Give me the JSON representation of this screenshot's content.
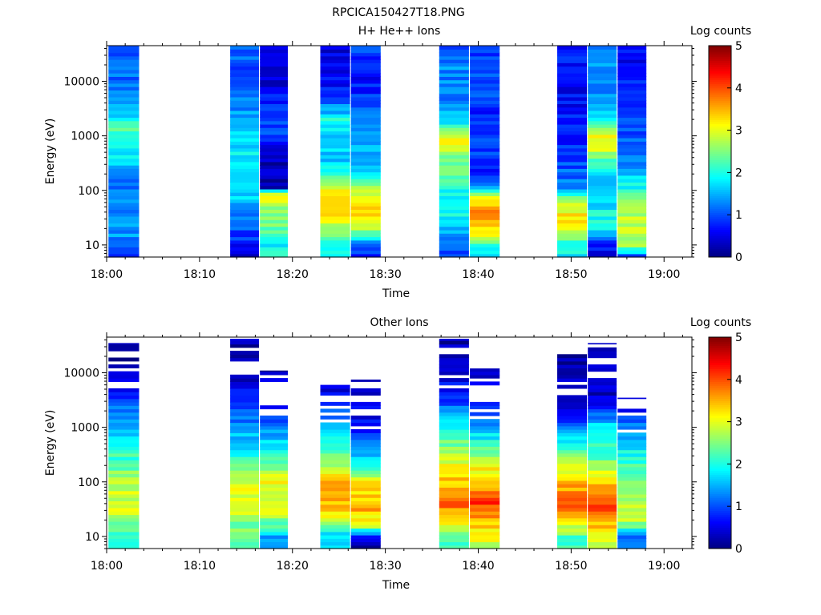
{
  "figure_title": "RPCICA150427T18.PNG",
  "chart_data": [
    {
      "type": "heatmap",
      "title": "H+ He++ Ions",
      "xlabel": "Time",
      "ylabel": "Energy (eV)",
      "x_ticks": [
        "18:00",
        "18:10",
        "18:20",
        "18:30",
        "18:40",
        "18:50",
        "19:00"
      ],
      "x_range": [
        "18:00",
        "19:03"
      ],
      "y_scale": "log",
      "y_range": [
        6,
        45000
      ],
      "y_ticks": [
        10,
        100,
        1000,
        10000
      ],
      "y_ticklabels": [
        "10",
        "100",
        "1000",
        "10000"
      ],
      "colorbar": {
        "label": "Log counts",
        "range": [
          0,
          5
        ],
        "ticks": [
          "0",
          "1",
          "2",
          "3",
          "4",
          "5"
        ],
        "colormap": "jet"
      },
      "intervals": [
        {
          "start": "18:00.2",
          "end": "18:03.5",
          "profile": [
            [
              6,
              1.0
            ],
            [
              10,
              1.3
            ],
            [
              20,
              1.35
            ],
            [
              60,
              1.2
            ],
            [
              150,
              1.15
            ],
            [
              400,
              1.7
            ],
            [
              1000,
              2.0
            ],
            [
              1500,
              2.4
            ],
            [
              2000,
              1.8
            ],
            [
              5000,
              1.35
            ],
            [
              15000,
              1.15
            ],
            [
              45000,
              1.1
            ]
          ]
        },
        {
          "start": "18:13.3",
          "end": "18:16.4",
          "profile": [
            [
              6,
              0.4
            ],
            [
              10,
              0.7
            ],
            [
              15,
              0.9
            ],
            [
              40,
              1.4
            ],
            [
              100,
              1.8
            ],
            [
              300,
              1.9
            ],
            [
              1000,
              1.6
            ],
            [
              3000,
              1.3
            ],
            [
              15000,
              1.0
            ],
            [
              45000,
              1.1
            ]
          ]
        },
        {
          "start": "18:16.5",
          "end": "18:19.5",
          "profile": [
            [
              6,
              2.0
            ],
            [
              10,
              1.9
            ],
            [
              20,
              2.3
            ],
            [
              50,
              2.7
            ],
            [
              90,
              3.0
            ],
            [
              110,
              0.3
            ],
            [
              400,
              0.3
            ],
            [
              1000,
              1.0
            ],
            [
              3000,
              0.9
            ],
            [
              10000,
              0.4
            ],
            [
              45000,
              0.4
            ]
          ]
        },
        {
          "start": "18:23.0",
          "end": "18:26.2",
          "profile": [
            [
              6,
              1.8
            ],
            [
              10,
              1.9
            ],
            [
              15,
              2.3
            ],
            [
              25,
              3.0
            ],
            [
              50,
              3.3
            ],
            [
              100,
              3.0
            ],
            [
              300,
              1.7
            ],
            [
              1000,
              1.6
            ],
            [
              2000,
              2.0
            ],
            [
              3000,
              1.4
            ],
            [
              10000,
              0.6
            ],
            [
              45000,
              0.4
            ]
          ]
        },
        {
          "start": "18:26.3",
          "end": "18:29.5",
          "profile": [
            [
              6,
              0.8
            ],
            [
              10,
              0.9
            ],
            [
              15,
              2.0
            ],
            [
              25,
              3.2
            ],
            [
              50,
              3.3
            ],
            [
              100,
              2.8
            ],
            [
              200,
              1.7
            ],
            [
              1000,
              1.3
            ],
            [
              5000,
              0.9
            ],
            [
              10000,
              0.7
            ],
            [
              45000,
              1.0
            ]
          ]
        },
        {
          "start": "18:35.8",
          "end": "18:39.0",
          "profile": [
            [
              6,
              1.0
            ],
            [
              10,
              1.1
            ],
            [
              20,
              1.6
            ],
            [
              40,
              1.9
            ],
            [
              100,
              2.0
            ],
            [
              300,
              2.4
            ],
            [
              1000,
              3.1
            ],
            [
              2000,
              1.6
            ],
            [
              5000,
              1.2
            ],
            [
              20000,
              1.3
            ],
            [
              45000,
              1.1
            ]
          ]
        },
        {
          "start": "18:39.1",
          "end": "18:42.3",
          "profile": [
            [
              6,
              1.6
            ],
            [
              10,
              2.2
            ],
            [
              15,
              3.0
            ],
            [
              30,
              3.5
            ],
            [
              50,
              3.6
            ],
            [
              90,
              2.6
            ],
            [
              150,
              0.8
            ],
            [
              400,
              0.9
            ],
            [
              2000,
              0.8
            ],
            [
              10000,
              1.0
            ],
            [
              45000,
              0.8
            ]
          ]
        },
        {
          "start": "18:48.5",
          "end": "18:51.7",
          "profile": [
            [
              6,
              1.8
            ],
            [
              10,
              1.9
            ],
            [
              15,
              2.6
            ],
            [
              30,
              3.3
            ],
            [
              60,
              2.9
            ],
            [
              120,
              1.2
            ],
            [
              400,
              1.0
            ],
            [
              1000,
              0.8
            ],
            [
              5000,
              0.6
            ],
            [
              20000,
              0.7
            ],
            [
              45000,
              0.7
            ]
          ]
        },
        {
          "start": "18:51.8",
          "end": "18:54.9",
          "profile": [
            [
              6,
              0.3
            ],
            [
              10,
              0.8
            ],
            [
              20,
              2.0
            ],
            [
              40,
              1.9
            ],
            [
              100,
              1.4
            ],
            [
              300,
              2.0
            ],
            [
              700,
              3.2
            ],
            [
              1200,
              3.0
            ],
            [
              2000,
              1.7
            ],
            [
              5000,
              1.3
            ],
            [
              20000,
              1.3
            ],
            [
              45000,
              1.2
            ]
          ]
        },
        {
          "start": "18:55.0",
          "end": "18:58.1",
          "profile": [
            [
              6,
              0.9
            ],
            [
              10,
              2.6
            ],
            [
              20,
              2.9
            ],
            [
              50,
              2.6
            ],
            [
              120,
              1.9
            ],
            [
              300,
              1.3
            ],
            [
              1000,
              1.0
            ],
            [
              5000,
              0.8
            ],
            [
              20000,
              0.6
            ],
            [
              45000,
              0.7
            ]
          ]
        }
      ]
    },
    {
      "type": "heatmap",
      "title": "Other Ions",
      "xlabel": "Time",
      "ylabel": "Energy (eV)",
      "x_ticks": [
        "18:00",
        "18:10",
        "18:20",
        "18:30",
        "18:40",
        "18:50",
        "19:00"
      ],
      "x_range": [
        "18:00",
        "19:03"
      ],
      "y_scale": "log",
      "y_range": [
        6,
        45000
      ],
      "y_ticks": [
        10,
        100,
        1000,
        10000
      ],
      "y_ticklabels": [
        "10",
        "100",
        "1000",
        "10000"
      ],
      "colorbar": {
        "label": "Log counts",
        "range": [
          0,
          5
        ],
        "ticks": [
          "0",
          "1",
          "2",
          "3",
          "4",
          "5"
        ],
        "colormap": "jet"
      },
      "intervals": [
        {
          "start": "18:00.2",
          "end": "18:03.5",
          "top": 35000,
          "profile": [
            [
              6,
              1.9
            ],
            [
              10,
              2.0
            ],
            [
              15,
              2.3
            ],
            [
              30,
              2.9
            ],
            [
              60,
              2.9
            ],
            [
              150,
              2.5
            ],
            [
              400,
              2.0
            ],
            [
              1000,
              1.5
            ],
            [
              3000,
              1.0
            ],
            [
              10000,
              0.3
            ],
            [
              35000,
              0.2
            ]
          ]
        },
        {
          "start": "18:13.3",
          "end": "18:16.4",
          "top": 42000,
          "profile": [
            [
              6,
              2.3
            ],
            [
              10,
              2.4
            ],
            [
              20,
              2.5
            ],
            [
              40,
              3.1
            ],
            [
              100,
              2.9
            ],
            [
              300,
              2.0
            ],
            [
              1000,
              1.4
            ],
            [
              3000,
              0.8
            ],
            [
              10000,
              0.3
            ],
            [
              42000,
              0.2
            ]
          ]
        },
        {
          "start": "18:16.5",
          "end": "18:19.5",
          "top": 11000,
          "profile": [
            [
              6,
              1.2
            ],
            [
              10,
              1.3
            ],
            [
              15,
              2.2
            ],
            [
              30,
              2.9
            ],
            [
              100,
              3.1
            ],
            [
              300,
              2.1
            ],
            [
              1000,
              1.3
            ],
            [
              3000,
              0.6
            ],
            [
              11000,
              0.2
            ]
          ]
        },
        {
          "start": "18:23.0",
          "end": "18:26.2",
          "top": 8000,
          "profile": [
            [
              6,
              1.6
            ],
            [
              10,
              1.8
            ],
            [
              15,
              2.1
            ],
            [
              30,
              3.5
            ],
            [
              100,
              3.4
            ],
            [
              300,
              2.3
            ],
            [
              1000,
              1.6
            ],
            [
              3000,
              0.7
            ],
            [
              8000,
              0.3
            ]
          ]
        },
        {
          "start": "18:26.3",
          "end": "18:29.5",
          "top": 7500,
          "profile": [
            [
              6,
              0.2
            ],
            [
              10,
              0.4
            ],
            [
              15,
              2.8
            ],
            [
              30,
              3.5
            ],
            [
              100,
              3.1
            ],
            [
              300,
              1.6
            ],
            [
              1000,
              0.7
            ],
            [
              3000,
              0.4
            ],
            [
              7500,
              0.2
            ]
          ]
        },
        {
          "start": "18:35.8",
          "end": "18:39.0",
          "top": 42000,
          "profile": [
            [
              6,
              2.2
            ],
            [
              10,
              2.4
            ],
            [
              20,
              3.1
            ],
            [
              40,
              3.9
            ],
            [
              100,
              3.4
            ],
            [
              300,
              2.9
            ],
            [
              1000,
              1.9
            ],
            [
              3000,
              0.9
            ],
            [
              10000,
              0.4
            ],
            [
              42000,
              0.2
            ]
          ]
        },
        {
          "start": "18:39.1",
          "end": "18:42.3",
          "top": 12000,
          "profile": [
            [
              6,
              2.9
            ],
            [
              10,
              3.0
            ],
            [
              20,
              3.5
            ],
            [
              40,
              4.1
            ],
            [
              100,
              3.5
            ],
            [
              300,
              2.7
            ],
            [
              1000,
              1.4
            ],
            [
              3000,
              0.7
            ],
            [
              12000,
              0.2
            ]
          ]
        },
        {
          "start": "18:48.5",
          "end": "18:51.7",
          "top": 27000,
          "profile": [
            [
              6,
              2.2
            ],
            [
              10,
              2.3
            ],
            [
              20,
              3.3
            ],
            [
              40,
              3.9
            ],
            [
              100,
              3.5
            ],
            [
              300,
              2.4
            ],
            [
              1000,
              1.2
            ],
            [
              3000,
              0.4
            ],
            [
              27000,
              0.2
            ]
          ]
        },
        {
          "start": "18:51.8",
          "end": "18:54.9",
          "top": 35000,
          "profile": [
            [
              6,
              2.9
            ],
            [
              10,
              3.0
            ],
            [
              20,
              3.6
            ],
            [
              40,
              4.0
            ],
            [
              100,
              3.3
            ],
            [
              300,
              2.3
            ],
            [
              1000,
              1.8
            ],
            [
              3000,
              0.4
            ],
            [
              35000,
              0.2
            ]
          ]
        },
        {
          "start": "18:55.0",
          "end": "18:58.1",
          "top": 3500,
          "profile": [
            [
              6,
              1.1
            ],
            [
              10,
              1.3
            ],
            [
              20,
              2.9
            ],
            [
              50,
              2.8
            ],
            [
              150,
              2.3
            ],
            [
              400,
              1.8
            ],
            [
              1000,
              1.3
            ],
            [
              3500,
              0.4
            ]
          ]
        }
      ]
    }
  ]
}
